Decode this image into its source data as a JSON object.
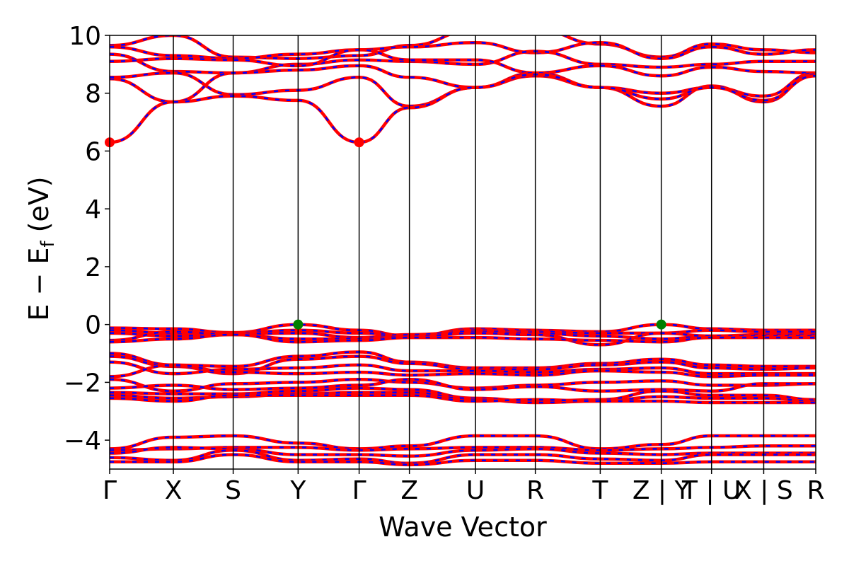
{
  "chart_data": {
    "type": "line",
    "title": "",
    "xlabel": "Wave Vector",
    "ylabel_main": "E − E",
    "ylabel_sub": "f",
    "ylabel_unit": " (eV)",
    "ylim": [
      -5,
      10
    ],
    "yticks": [
      10,
      8,
      6,
      4,
      2,
      0,
      -2,
      -4
    ],
    "ytick_labels": [
      "10",
      "8",
      "6",
      "4",
      "2",
      "0",
      "−2",
      "−4"
    ],
    "grid": false,
    "legend": "none",
    "kpath": [
      {
        "label": "Γ",
        "k": 0.0
      },
      {
        "label": "X",
        "k": 0.8997
      },
      {
        "label": "S",
        "k": 1.7447
      },
      {
        "label": "Y",
        "k": 2.6617
      },
      {
        "label": "Γ",
        "k": 3.5237
      },
      {
        "label": "Z",
        "k": 4.2336
      },
      {
        "label": "U",
        "k": 5.1673
      },
      {
        "label": "R",
        "k": 6.0123
      },
      {
        "label": "T",
        "k": 6.9292
      },
      {
        "label": "Z | Y",
        "k": 7.7912
      },
      {
        "label": "T | U",
        "k": 8.5011
      },
      {
        "label": "X | S",
        "k": 9.238
      },
      {
        "label": "R",
        "k": 9.973
      }
    ],
    "band_colors": {
      "spin_up": "#ff0000",
      "spin_down": "#0000ff",
      "axis": "#000000"
    },
    "band_edges": [
      {
        "kind": "cbm",
        "k": 0.0,
        "E": 6.3,
        "color": "#ff0000"
      },
      {
        "kind": "cbm",
        "k": 3.5237,
        "E": 6.3,
        "color": "#ff0000"
      },
      {
        "kind": "vbm",
        "k": 2.6617,
        "E": 0.0,
        "color": "#008000"
      },
      {
        "kind": "vbm",
        "k": 7.7912,
        "E": 0.0,
        "color": "#008000"
      }
    ],
    "bands": [
      [
        9.65,
        10.0,
        9.25,
        9.2,
        9.3,
        9.65,
        10.2,
        10.2,
        9.7,
        9.25,
        9.7,
        9.5,
        9.4
      ],
      [
        9.6,
        9.3,
        9.2,
        9.35,
        9.5,
        9.6,
        9.75,
        9.4,
        9.75,
        9.2,
        9.6,
        9.35,
        9.5
      ],
      [
        9.35,
        8.75,
        8.7,
        9.0,
        9.15,
        9.1,
        9.0,
        9.45,
        9.0,
        8.9,
        9.0,
        9.1,
        9.1
      ],
      [
        9.1,
        9.2,
        9.15,
        8.95,
        9.5,
        9.15,
        9.15,
        8.7,
        8.95,
        8.6,
        8.9,
        8.75,
        8.7
      ],
      [
        8.5,
        7.7,
        8.7,
        8.8,
        8.95,
        8.55,
        8.2,
        8.6,
        8.2,
        8.0,
        8.2,
        7.9,
        8.7
      ],
      [
        8.55,
        8.7,
        7.95,
        8.1,
        8.55,
        7.55,
        8.2,
        8.7,
        8.2,
        7.55,
        8.25,
        7.7,
        8.65
      ],
      [
        6.3,
        7.7,
        7.9,
        7.75,
        6.3,
        7.5,
        8.2,
        8.65,
        8.2,
        7.8,
        8.2,
        7.75,
        8.6
      ],
      [
        -0.12,
        -0.15,
        -0.28,
        0.0,
        -0.2,
        -0.4,
        -0.15,
        -0.2,
        -0.25,
        0.0,
        -0.15,
        -0.2,
        -0.2
      ],
      [
        -0.2,
        -0.3,
        -0.3,
        -0.2,
        -0.3,
        -0.38,
        -0.2,
        -0.25,
        -0.3,
        -0.3,
        -0.2,
        -0.25,
        -0.25
      ],
      [
        -0.3,
        -0.4,
        -0.32,
        -0.3,
        -0.45,
        -0.35,
        -0.25,
        -0.3,
        -0.4,
        -0.5,
        -0.4,
        -0.35,
        -0.35
      ],
      [
        -0.55,
        -0.25,
        -0.35,
        -0.5,
        -0.5,
        -0.42,
        -0.3,
        -0.35,
        -0.7,
        -0.3,
        -0.4,
        -0.4,
        -0.4
      ],
      [
        -0.6,
        -0.5,
        -0.35,
        -0.6,
        -0.55,
        -0.45,
        -0.45,
        -0.5,
        -0.55,
        -0.6,
        -0.45,
        -0.45,
        -0.45
      ],
      [
        -1.0,
        -1.4,
        -1.45,
        -1.1,
        -0.95,
        -1.3,
        -1.5,
        -1.5,
        -1.35,
        -1.2,
        -1.4,
        -1.45,
        -1.45
      ],
      [
        -1.1,
        -1.45,
        -1.7,
        -1.2,
        -1.1,
        -1.35,
        -1.55,
        -1.55,
        -1.4,
        -1.3,
        -1.5,
        -1.55,
        -1.5
      ],
      [
        -1.3,
        -1.7,
        -1.55,
        -1.5,
        -1.4,
        -1.6,
        -1.6,
        -1.65,
        -1.55,
        -1.5,
        -1.7,
        -1.7,
        -1.7
      ],
      [
        -1.8,
        -1.4,
        -1.65,
        -1.7,
        -1.65,
        -1.75,
        -1.7,
        -1.75,
        -1.6,
        -1.65,
        -1.8,
        -1.75,
        -1.75
      ],
      [
        -1.9,
        -2.3,
        -2.05,
        -2.0,
        -1.9,
        -2.0,
        -2.2,
        -2.1,
        -2.0,
        -1.95,
        -2.1,
        -2.1,
        -2.05
      ],
      [
        -2.2,
        -2.1,
        -2.25,
        -2.2,
        -2.1,
        -1.9,
        -2.25,
        -2.15,
        -2.3,
        -2.25,
        -2.3,
        -2.05,
        -2.05
      ],
      [
        -2.35,
        -2.4,
        -2.4,
        -2.3,
        -2.2,
        -2.25,
        -2.55,
        -2.65,
        -2.6,
        -2.3,
        -2.45,
        -2.45,
        -2.6
      ],
      [
        -2.45,
        -2.55,
        -2.5,
        -2.4,
        -2.35,
        -2.35,
        -2.6,
        -2.7,
        -2.65,
        -2.5,
        -2.55,
        -2.55,
        -2.65
      ],
      [
        -2.55,
        -2.65,
        -2.45,
        -2.45,
        -2.45,
        -2.45,
        -2.65,
        -2.6,
        -2.65,
        -2.65,
        -2.7,
        -2.7,
        -2.7
      ],
      [
        -4.3,
        -3.9,
        -3.85,
        -4.1,
        -4.3,
        -4.2,
        -3.85,
        -3.85,
        -4.3,
        -4.15,
        -3.85,
        -3.85,
        -3.85
      ],
      [
        -4.35,
        -4.3,
        -4.25,
        -4.25,
        -4.35,
        -4.3,
        -4.25,
        -4.25,
        -4.35,
        -4.3,
        -4.25,
        -4.2,
        -4.2
      ],
      [
        -4.45,
        -4.25,
        -4.3,
        -4.5,
        -4.5,
        -4.55,
        -4.35,
        -4.3,
        -4.45,
        -4.5,
        -4.45,
        -4.45,
        -4.45
      ],
      [
        -4.6,
        -4.7,
        -4.35,
        -4.7,
        -4.65,
        -4.8,
        -4.5,
        -4.5,
        -4.65,
        -4.7,
        -4.5,
        -4.5,
        -4.5
      ],
      [
        -4.75,
        -4.75,
        -4.5,
        -4.75,
        -4.75,
        -4.85,
        -4.7,
        -4.7,
        -4.8,
        -4.8,
        -4.75,
        -4.75,
        -4.75
      ]
    ]
  }
}
